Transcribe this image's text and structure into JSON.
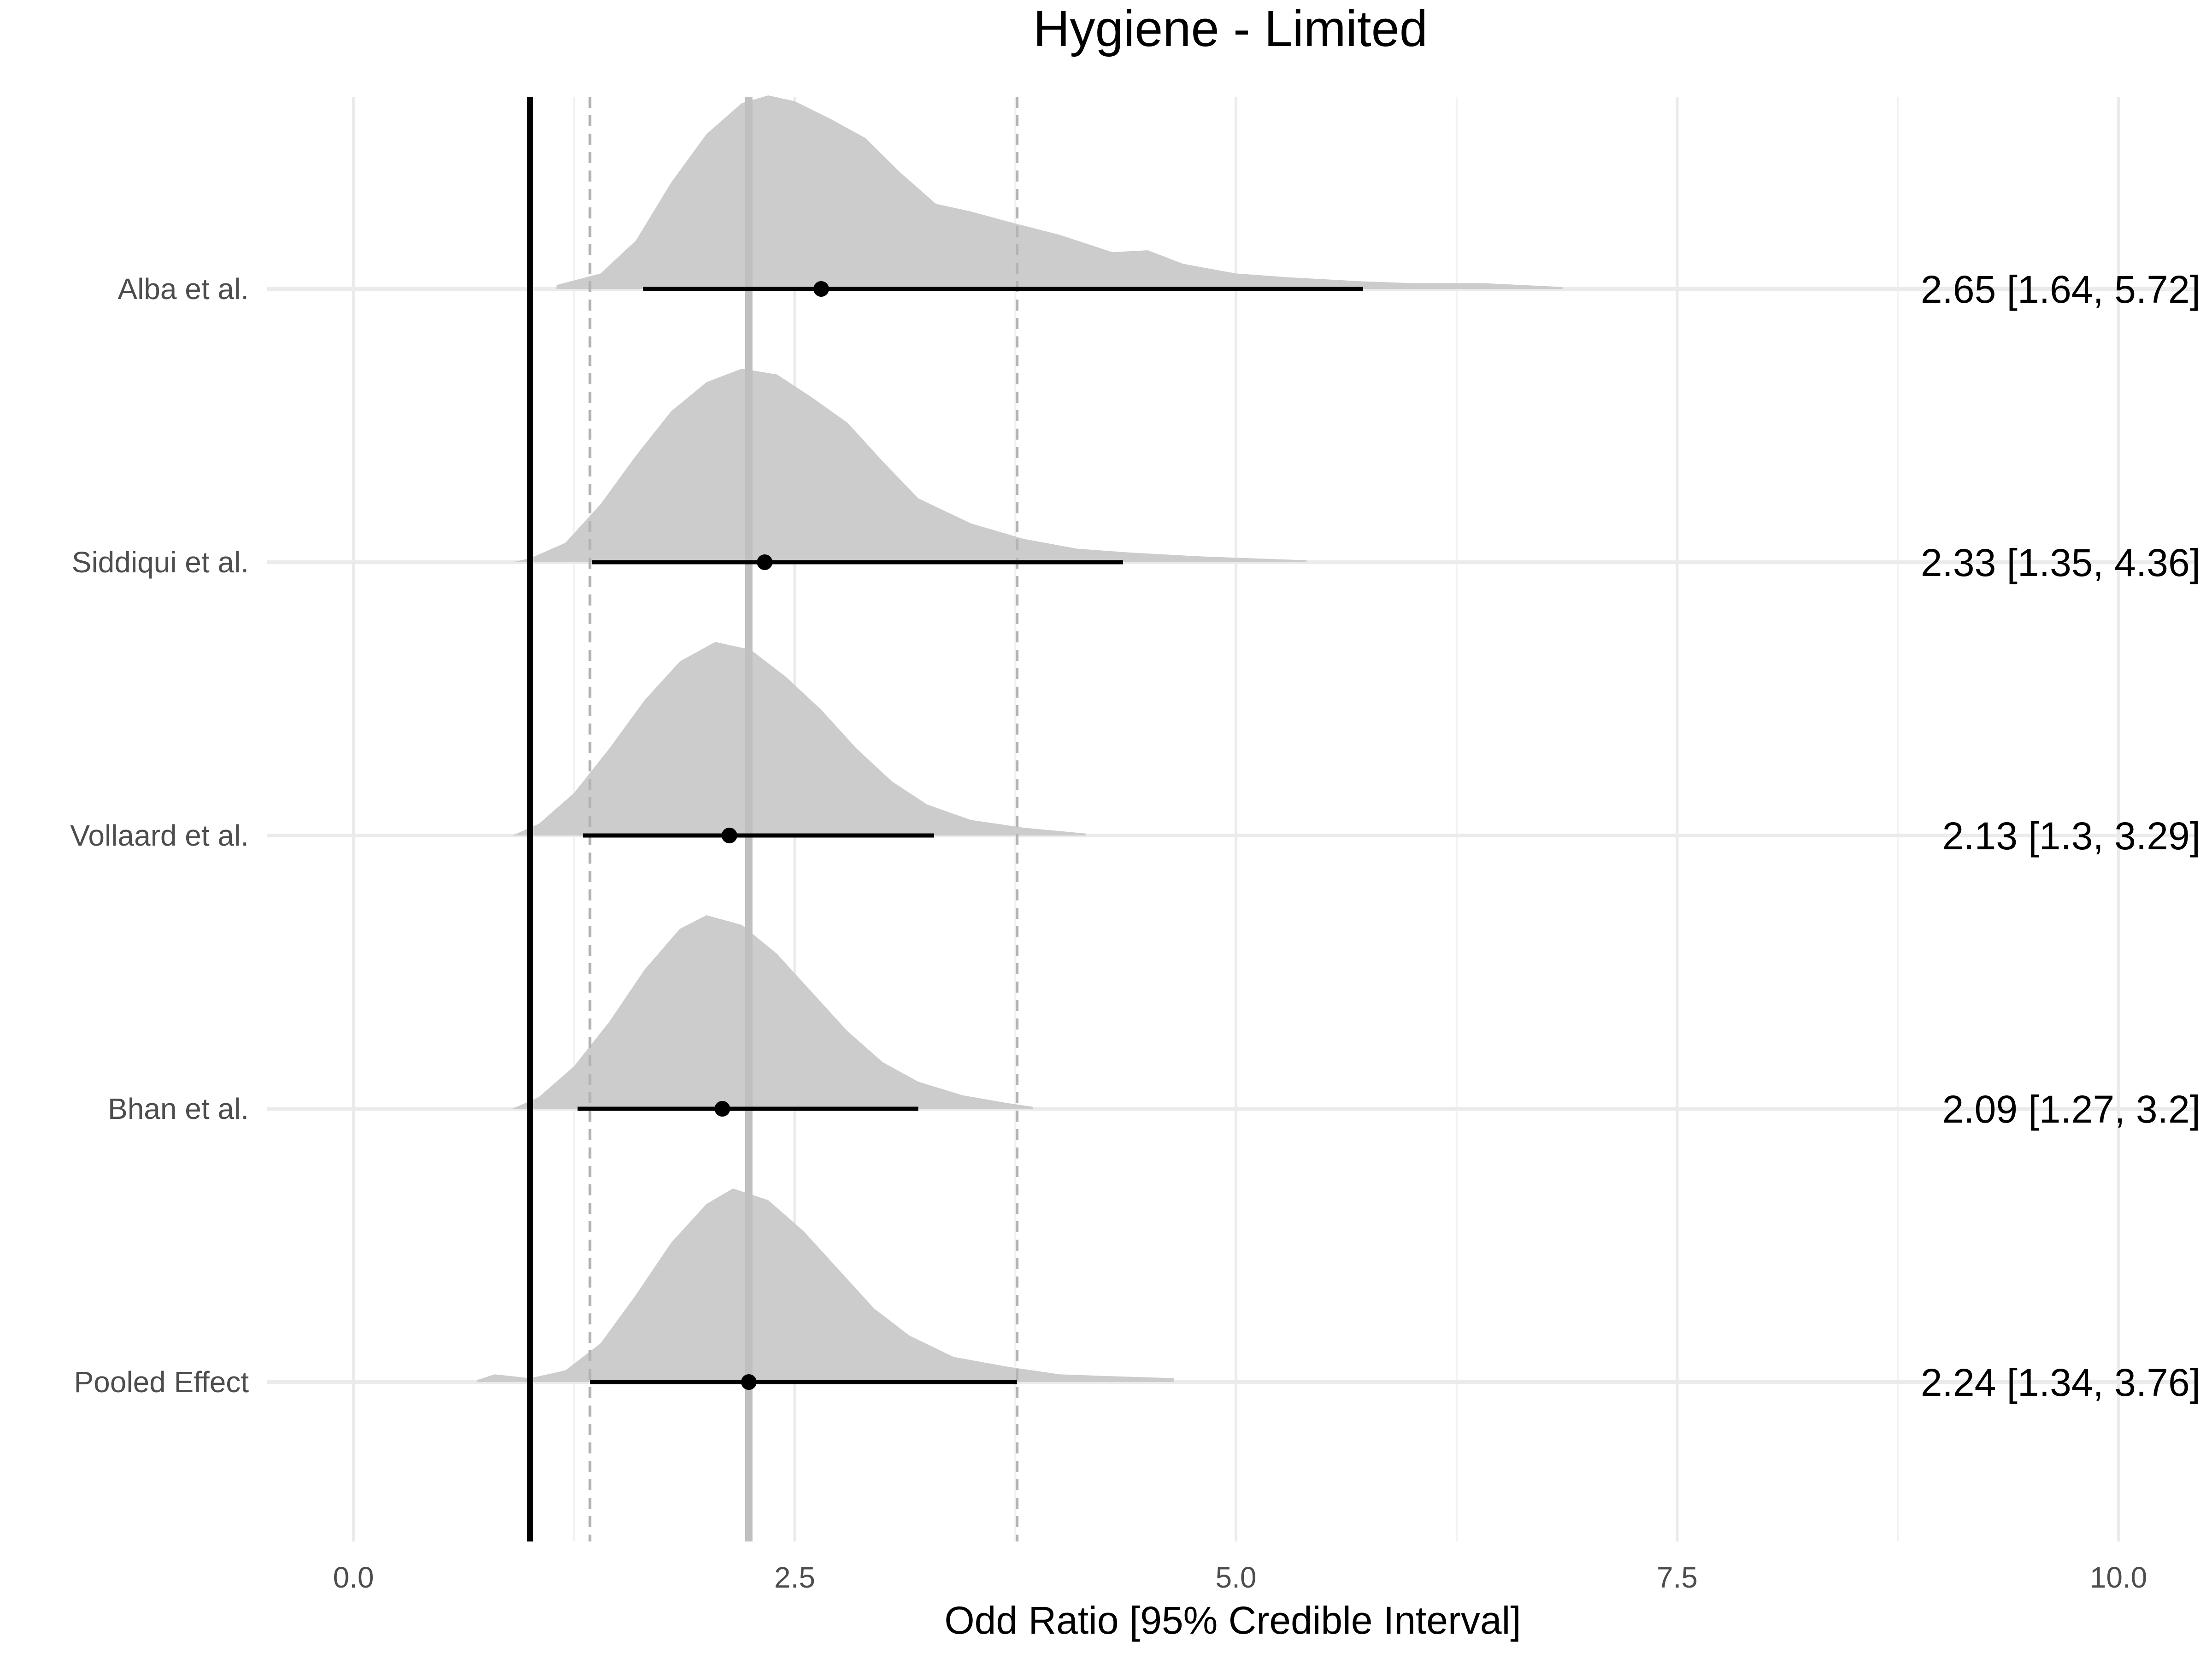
{
  "chart_data": {
    "type": "forest-density",
    "title": "Hygiene - Limited",
    "xlabel": "Odd Ratio [95% Credible Interval]",
    "ylabel": "",
    "xlim": [
      -0.25,
      10.25
    ],
    "xticks": [
      0.0,
      2.5,
      5.0,
      7.5,
      10.0
    ],
    "xtick_labels": [
      "0.0",
      "2.5",
      "5.0",
      "7.5",
      "10.0"
    ],
    "grid": true,
    "reference_line": 1.0,
    "pooled_estimate_line": 2.24,
    "pooled_ci_lines": [
      1.34,
      3.76
    ],
    "studies": [
      {
        "name": "Alba et al.",
        "estimate": 2.65,
        "lower": 1.64,
        "upper": 5.72,
        "label": "2.65 [1.64, 5.72]",
        "density": [
          [
            1.15,
            0.02
          ],
          [
            1.4,
            0.08
          ],
          [
            1.6,
            0.25
          ],
          [
            1.8,
            0.55
          ],
          [
            2.0,
            0.8
          ],
          [
            2.2,
            0.96
          ],
          [
            2.35,
            1.0
          ],
          [
            2.5,
            0.97
          ],
          [
            2.7,
            0.88
          ],
          [
            2.9,
            0.78
          ],
          [
            3.1,
            0.6
          ],
          [
            3.3,
            0.44
          ],
          [
            3.5,
            0.4
          ],
          [
            3.7,
            0.35
          ],
          [
            4.0,
            0.28
          ],
          [
            4.3,
            0.19
          ],
          [
            4.5,
            0.2
          ],
          [
            4.7,
            0.13
          ],
          [
            5.0,
            0.08
          ],
          [
            5.3,
            0.06
          ],
          [
            5.7,
            0.04
          ],
          [
            6.0,
            0.03
          ],
          [
            6.4,
            0.03
          ],
          [
            6.85,
            0.01
          ]
        ]
      },
      {
        "name": "Siddiqui et al.",
        "estimate": 2.33,
        "lower": 1.35,
        "upper": 4.36,
        "label": "2.33 [1.35, 4.36]",
        "density": [
          [
            0.9,
            0.0
          ],
          [
            1.0,
            0.02
          ],
          [
            1.2,
            0.1
          ],
          [
            1.4,
            0.3
          ],
          [
            1.6,
            0.55
          ],
          [
            1.8,
            0.78
          ],
          [
            2.0,
            0.93
          ],
          [
            2.2,
            1.0
          ],
          [
            2.4,
            0.97
          ],
          [
            2.6,
            0.85
          ],
          [
            2.8,
            0.72
          ],
          [
            3.0,
            0.52
          ],
          [
            3.2,
            0.33
          ],
          [
            3.5,
            0.2
          ],
          [
            3.8,
            0.12
          ],
          [
            4.1,
            0.07
          ],
          [
            4.4,
            0.05
          ],
          [
            4.8,
            0.03
          ],
          [
            5.1,
            0.02
          ],
          [
            5.4,
            0.01
          ]
        ]
      },
      {
        "name": "Vollaard et al.",
        "estimate": 2.13,
        "lower": 1.3,
        "upper": 3.29,
        "label": "2.13 [1.3, 3.29]",
        "density": [
          [
            0.9,
            0.0
          ],
          [
            1.05,
            0.06
          ],
          [
            1.25,
            0.22
          ],
          [
            1.45,
            0.45
          ],
          [
            1.65,
            0.7
          ],
          [
            1.85,
            0.9
          ],
          [
            2.05,
            1.0
          ],
          [
            2.25,
            0.96
          ],
          [
            2.45,
            0.82
          ],
          [
            2.65,
            0.65
          ],
          [
            2.85,
            0.45
          ],
          [
            3.05,
            0.28
          ],
          [
            3.25,
            0.16
          ],
          [
            3.5,
            0.08
          ],
          [
            3.8,
            0.04
          ],
          [
            4.15,
            0.01
          ]
        ]
      },
      {
        "name": "Bhan et al.",
        "estimate": 2.09,
        "lower": 1.27,
        "upper": 3.2,
        "label": "2.09 [1.27, 3.2]",
        "density": [
          [
            0.9,
            0.0
          ],
          [
            1.05,
            0.06
          ],
          [
            1.25,
            0.22
          ],
          [
            1.45,
            0.45
          ],
          [
            1.65,
            0.72
          ],
          [
            1.85,
            0.93
          ],
          [
            2.0,
            1.0
          ],
          [
            2.2,
            0.95
          ],
          [
            2.4,
            0.8
          ],
          [
            2.6,
            0.6
          ],
          [
            2.8,
            0.4
          ],
          [
            3.0,
            0.24
          ],
          [
            3.2,
            0.14
          ],
          [
            3.45,
            0.07
          ],
          [
            3.7,
            0.03
          ],
          [
            3.85,
            0.01
          ]
        ]
      },
      {
        "name": "Pooled Effect",
        "estimate": 2.24,
        "lower": 1.34,
        "upper": 3.76,
        "label": "2.24 [1.34, 3.76]",
        "density": [
          [
            0.7,
            0.01
          ],
          [
            0.8,
            0.04
          ],
          [
            0.9,
            0.03
          ],
          [
            1.0,
            0.02
          ],
          [
            1.2,
            0.06
          ],
          [
            1.4,
            0.2
          ],
          [
            1.6,
            0.45
          ],
          [
            1.8,
            0.72
          ],
          [
            2.0,
            0.92
          ],
          [
            2.15,
            1.0
          ],
          [
            2.35,
            0.94
          ],
          [
            2.55,
            0.78
          ],
          [
            2.75,
            0.58
          ],
          [
            2.95,
            0.38
          ],
          [
            3.15,
            0.24
          ],
          [
            3.4,
            0.13
          ],
          [
            3.7,
            0.08
          ],
          [
            4.0,
            0.04
          ],
          [
            4.3,
            0.03
          ],
          [
            4.65,
            0.02
          ]
        ]
      }
    ]
  }
}
